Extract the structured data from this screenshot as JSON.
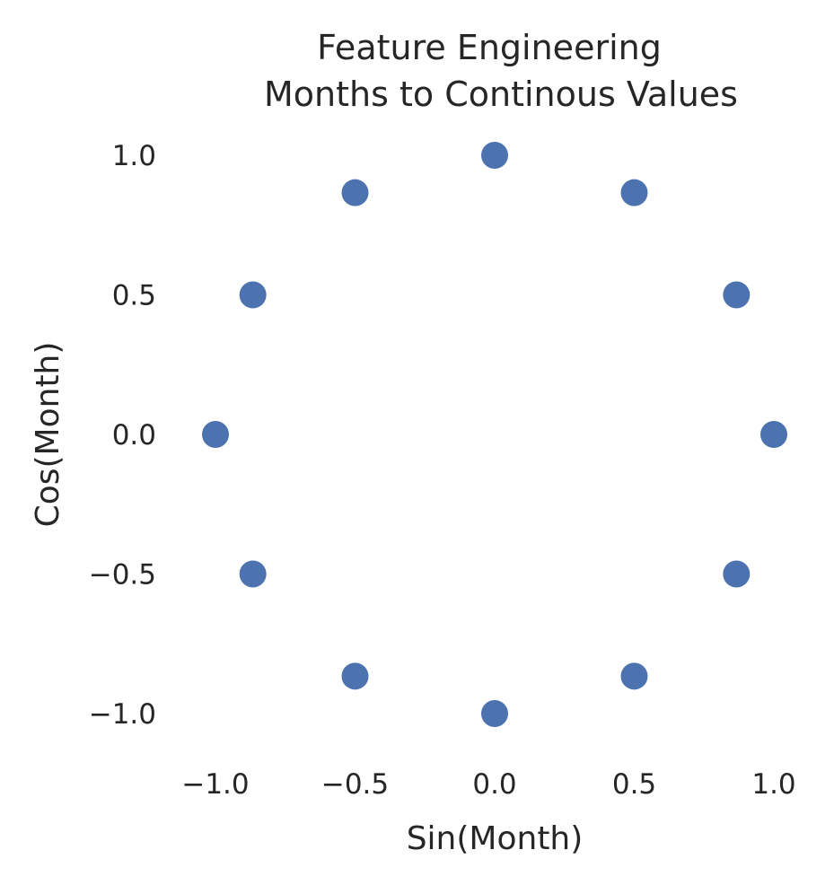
{
  "chart_data": {
    "type": "scatter",
    "title": [
      "Feature Engineering",
      "Months to Continous Values"
    ],
    "xlabel": "Sin(Month)",
    "ylabel": "Cos(Month)",
    "xlim": [
      -1.1,
      1.1
    ],
    "ylim": [
      -1.1,
      1.1
    ],
    "grid": false,
    "marker_color": "#4C72B0",
    "x_ticks": [
      {
        "value": -1.0,
        "label": "−1.0"
      },
      {
        "value": -0.5,
        "label": "−0.5"
      },
      {
        "value": 0.0,
        "label": "0.0"
      },
      {
        "value": 0.5,
        "label": "0.5"
      },
      {
        "value": 1.0,
        "label": "1.0"
      }
    ],
    "y_ticks": [
      {
        "value": 1.0,
        "label": "1.0"
      },
      {
        "value": 0.5,
        "label": "0.5"
      },
      {
        "value": 0.0,
        "label": "0.0"
      },
      {
        "value": -0.5,
        "label": "−0.5"
      },
      {
        "value": -1.0,
        "label": "−1.0"
      }
    ],
    "points": [
      {
        "x": 0.0,
        "y": 1.0
      },
      {
        "x": 0.5,
        "y": 0.866
      },
      {
        "x": 0.866,
        "y": 0.5
      },
      {
        "x": 1.0,
        "y": 0.0
      },
      {
        "x": 0.866,
        "y": -0.5
      },
      {
        "x": 0.5,
        "y": -0.866
      },
      {
        "x": 0.0,
        "y": -1.0
      },
      {
        "x": -0.5,
        "y": -0.866
      },
      {
        "x": -0.866,
        "y": -0.5
      },
      {
        "x": -1.0,
        "y": 0.0
      },
      {
        "x": -0.866,
        "y": 0.5
      },
      {
        "x": -0.5,
        "y": 0.866
      }
    ]
  }
}
